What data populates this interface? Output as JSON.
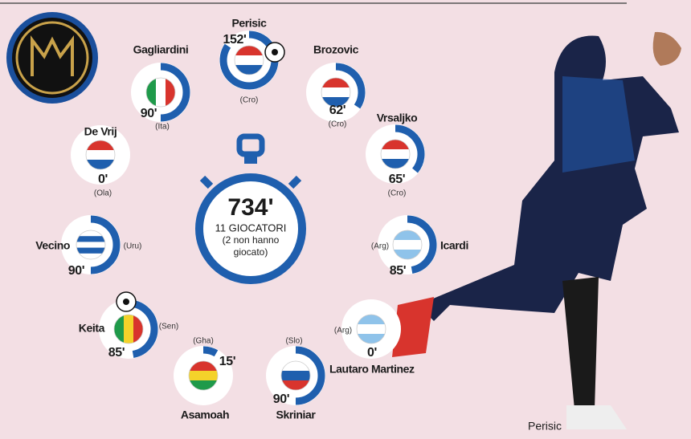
{
  "center": {
    "total": "734'",
    "line1": "11 GIOCATORI",
    "line2": "(2 non hanno",
    "line3": "giocato)"
  },
  "ring_range": [
    0,
    180
  ],
  "players": [
    {
      "name": "Perisic",
      "minutes": 152,
      "minutes_label": "152'",
      "nationality": "(Cro)"
    },
    {
      "name": "Gagliardini",
      "minutes": 90,
      "minutes_label": "90'",
      "nationality": "(Ita)"
    },
    {
      "name": "Brozovic",
      "minutes": 62,
      "minutes_label": "62'",
      "nationality": "(Cro)"
    },
    {
      "name": "Vrsaljko",
      "minutes": 65,
      "minutes_label": "65'",
      "nationality": "(Cro)"
    },
    {
      "name": "De Vrij",
      "minutes": 0,
      "minutes_label": "0'",
      "nationality": "(Ola)"
    },
    {
      "name": "Icardi",
      "minutes": 85,
      "minutes_label": "85'",
      "nationality": "(Arg)"
    },
    {
      "name": "Vecino",
      "minutes": 90,
      "minutes_label": "90'",
      "nationality": "(Uru)"
    },
    {
      "name": "Keita",
      "minutes": 85,
      "minutes_label": "85'",
      "nationality": "(Sen)"
    },
    {
      "name": "Lautaro Martinez",
      "minutes": 0,
      "minutes_label": "0'",
      "nationality": "(Arg)"
    },
    {
      "name": "Asamoah",
      "minutes": 15,
      "minutes_label": "15'",
      "nationality": "(Gha)"
    },
    {
      "name": "Skriniar",
      "minutes": 90,
      "minutes_label": "90'",
      "nationality": "(Slo)"
    }
  ],
  "photo_caption": "Perisic"
}
